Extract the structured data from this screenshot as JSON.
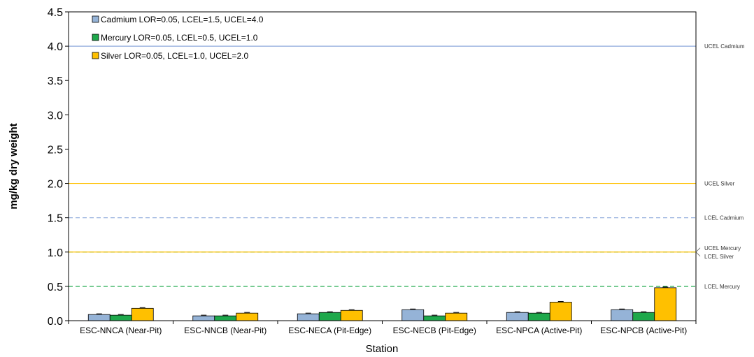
{
  "chart_data": {
    "type": "bar",
    "xlabel": "Station",
    "ylabel": "mg/kg dry weight",
    "ylim": [
      0,
      4.5
    ],
    "yticks": [
      "0.0",
      "0.5",
      "1.0",
      "1.5",
      "2.0",
      "2.5",
      "3.0",
      "3.5",
      "4.0",
      "4.5"
    ],
    "grid": false,
    "legend_position": "top-left",
    "categories": [
      "ESC-NNCA (Near-Pit)",
      "ESC-NNCB (Near-Pit)",
      "ESC-NECA (Pit-Edge)",
      "ESC-NECB (Pit-Edge)",
      "ESC-NPCA (Active-Pit)",
      "ESC-NPCB (Active-Pit)"
    ],
    "series": [
      {
        "name": "Cadmium LOR=0.05, LCEL=1.5, UCEL=4.0",
        "color": "#95b3d7",
        "values": [
          0.09,
          0.07,
          0.1,
          0.16,
          0.12,
          0.16
        ]
      },
      {
        "name": "Mercury LOR=0.05, LCEL=0.5, UCEL=1.0",
        "color": "#1ea84b",
        "values": [
          0.08,
          0.07,
          0.12,
          0.07,
          0.11,
          0.12
        ]
      },
      {
        "name": "Silver LOR=0.05, LCEL=1.0, UCEL=2.0",
        "color": "#ffc000",
        "values": [
          0.18,
          0.11,
          0.15,
          0.11,
          0.27,
          0.48
        ]
      }
    ],
    "reference_lines": [
      {
        "label": "UCEL Cadmium",
        "value": 4.0,
        "color": "#8ea9db",
        "style": "solid"
      },
      {
        "label": "UCEL Silver",
        "value": 2.0,
        "color": "#ffc000",
        "style": "solid"
      },
      {
        "label": "LCEL Cadmium",
        "value": 1.5,
        "color": "#8ea9db",
        "style": "dashed"
      },
      {
        "label": "UCEL Mercury",
        "value": 1.0,
        "color": "#1ea84b",
        "style": "dashed"
      },
      {
        "label": "LCEL Silver",
        "value": 1.0,
        "color": "#ffc000",
        "style": "solid"
      },
      {
        "label": "LCEL Mercury",
        "value": 0.5,
        "color": "#1ea84b",
        "style": "dashed"
      }
    ]
  }
}
